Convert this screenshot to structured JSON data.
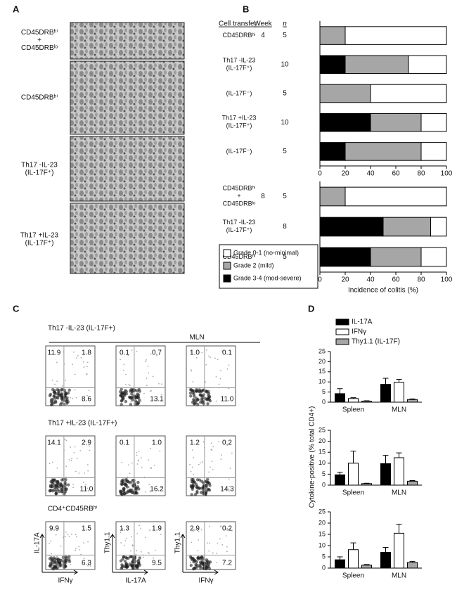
{
  "panels": {
    "A": {
      "letter": "A",
      "labels": [
        "CD45DRBʰⁱ\n+\nCD45DRBˡᵒ",
        "CD45DRBʰⁱ",
        "Th17 -IL-23\n(IL-17F⁺)",
        "Th17 +IL-23\n(IL-17F⁺)"
      ]
    },
    "B": {
      "letter": "B",
      "headers": {
        "cell_transfer": "Cell transfer",
        "week": "Week",
        "n": "n"
      }
    },
    "C": {
      "letter": "C",
      "mln": "MLN",
      "rows": [
        {
          "title": "Th17 -IL-23 (IL-17F+)",
          "plots": [
            [
              "11.9",
              "1.8",
              "8.6"
            ],
            [
              "0.1",
              "0.7",
              "13.1"
            ],
            [
              "1.0",
              "0.1",
              "11.0"
            ]
          ]
        },
        {
          "title": "Th17 +IL-23 (IL-17F+)",
          "plots": [
            [
              "14.1",
              "2.9",
              "11.0"
            ],
            [
              "0.1",
              "1.0",
              "16.2"
            ],
            [
              "1.2",
              "0.2",
              "14.3"
            ]
          ]
        },
        {
          "title": "CD4⁺CD45RBʰⁱ",
          "plots": [
            [
              "9.9",
              "1.5",
              "6.3"
            ],
            [
              "1.3",
              "1.9",
              "9.5"
            ],
            [
              "2.9",
              "0.2",
              "7.2"
            ]
          ],
          "axis_labels": [
            {
              "y": "IL-17A",
              "x": "IFNγ"
            },
            {
              "y": "Thy1.1",
              "x": "IL-17A"
            },
            {
              "y": "Thy1.1",
              "x": "IFNγ"
            }
          ]
        }
      ]
    },
    "D": {
      "letter": "D",
      "ylabel": "Cytokine-positive (% total CD4+)"
    }
  },
  "chart_data": [
    {
      "type": "bar",
      "orientation": "horizontal",
      "stacked": true,
      "categories": [
        "CD45DRBʰⁱ",
        "Th17 -IL-23\n(IL-17F⁺)",
        "(IL-17F⁻)",
        "Th17 +IL-23\n(IL-17F⁺)",
        "(IL-17F⁻)"
      ],
      "week": "4",
      "n": [
        5,
        10,
        5,
        10,
        5
      ],
      "series": [
        {
          "color": "#ffffff",
          "values": [
            80,
            30,
            60,
            20,
            20
          ]
        },
        {
          "color": "#a6a6a6",
          "values": [
            20,
            50,
            40,
            40,
            60
          ]
        },
        {
          "color": "#000000",
          "values": [
            0,
            20,
            0,
            40,
            20
          ]
        }
      ],
      "xlim": [
        0,
        100
      ],
      "xticks": [
        0,
        20,
        40,
        60,
        80,
        100
      ]
    },
    {
      "type": "bar",
      "orientation": "horizontal",
      "stacked": true,
      "categories": [
        "CD45DRBʰⁱ\n+\nCD45DRBˡᵒ",
        "Th17 -IL-23\n(IL-17F⁺)",
        "CD45DRBʰⁱ"
      ],
      "week": "8",
      "n": [
        5,
        8,
        5
      ],
      "series": [
        {
          "name": "Grade 0-1 (no-minimal)",
          "color": "#ffffff",
          "values": [
            80,
            12.5,
            20
          ]
        },
        {
          "name": "Grade 2 (mild)",
          "color": "#a6a6a6",
          "values": [
            20,
            37.5,
            40
          ]
        },
        {
          "name": "Grade 3-4 (mod-severe)",
          "color": "#000000",
          "values": [
            0,
            50,
            40
          ]
        }
      ],
      "xlim": [
        0,
        100
      ],
      "xticks": [
        0,
        20,
        40,
        60,
        80,
        100
      ],
      "xlabel": "Incidence of colitis (%)"
    },
    {
      "type": "bar",
      "categories": [
        "Spleen",
        "MLN"
      ],
      "series": [
        {
          "name": "IL-17A",
          "color": "#000000",
          "values": [
            4.2,
            8.8
          ],
          "errors": [
            2.5,
            3
          ]
        },
        {
          "name": "IFNγ",
          "color": "#ffffff",
          "values": [
            1.8,
            9.8
          ],
          "errors": [
            0.4,
            1.5
          ]
        },
        {
          "name": "Thy1.1 (IL-17F)",
          "color": "#a6a6a6",
          "values": [
            0.5,
            1.3
          ],
          "errors": [
            0.2,
            0.3
          ]
        }
      ],
      "ylim": [
        0,
        25
      ],
      "yticks": [
        0,
        5,
        10,
        15,
        20,
        25
      ]
    },
    {
      "type": "bar",
      "categories": [
        "Spleen",
        "MLN"
      ],
      "series": [
        {
          "color": "#000000",
          "values": [
            4.7,
            9.8
          ],
          "errors": [
            1.2,
            3.8
          ]
        },
        {
          "color": "#ffffff",
          "values": [
            10,
            12.5
          ],
          "errors": [
            5.5,
            2.2
          ]
        },
        {
          "color": "#a6a6a6",
          "values": [
            0.7,
            1.8
          ],
          "errors": [
            0.2,
            0.3
          ]
        }
      ],
      "ylim": [
        0,
        25
      ],
      "yticks": [
        0,
        5,
        10,
        15,
        20,
        25
      ]
    },
    {
      "type": "bar",
      "categories": [
        "Spleen",
        "MLN"
      ],
      "series": [
        {
          "color": "#000000",
          "values": [
            3.7,
            7
          ],
          "errors": [
            1.3,
            2.2
          ]
        },
        {
          "color": "#ffffff",
          "values": [
            8.2,
            15.5
          ],
          "errors": [
            3,
            4
          ]
        },
        {
          "color": "#a6a6a6",
          "values": [
            1.3,
            2.5
          ],
          "errors": [
            0.3,
            0.5
          ]
        }
      ],
      "ylim": [
        0,
        25
      ],
      "yticks": [
        0,
        5,
        10,
        15,
        20,
        25
      ]
    }
  ]
}
